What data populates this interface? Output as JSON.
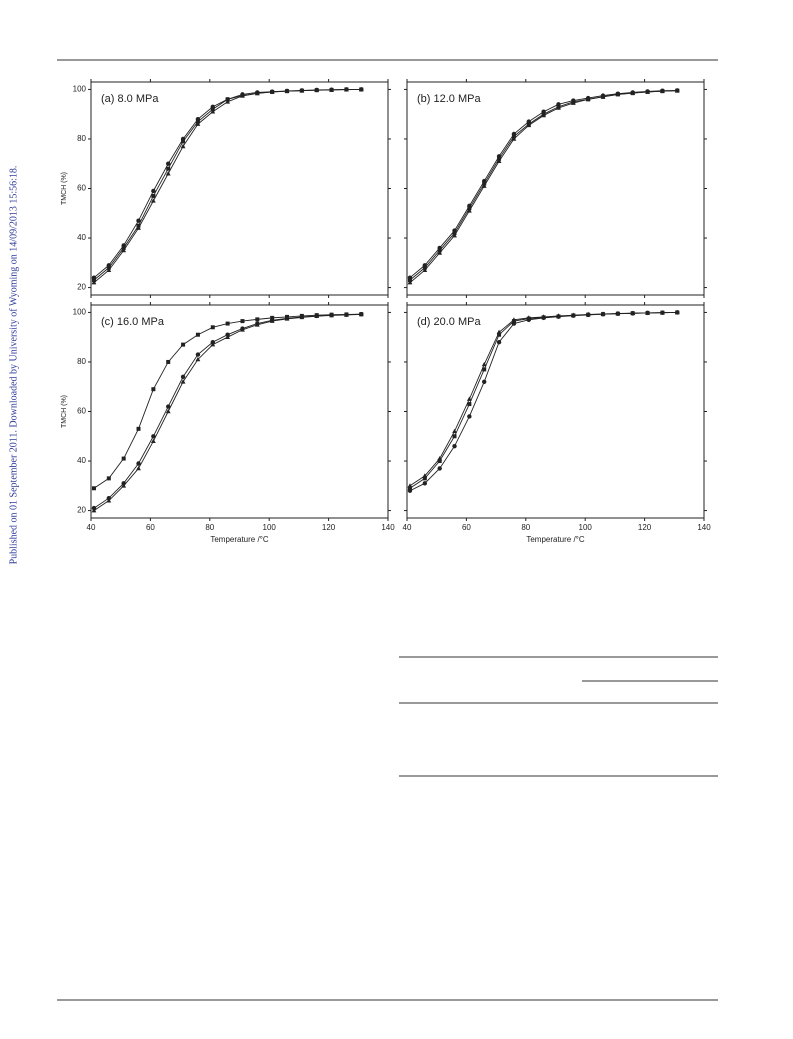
{
  "side_note": "Published on 01 September 2011. Downloaded by University of Wyoming on 14/09/2013 15:56:18.",
  "chart_data": [
    {
      "type": "line",
      "annotation": "(a) 8.0 MPa",
      "ylabel": "TMCH (%)",
      "x": [
        41,
        46,
        51,
        56,
        61,
        66,
        71,
        76,
        81,
        86,
        91,
        96,
        101,
        106,
        111,
        116,
        121,
        126,
        131
      ],
      "xlim": [
        40,
        140
      ],
      "ylim": [
        17,
        103
      ],
      "xticks": [
        40,
        60,
        80,
        100,
        120,
        140
      ],
      "yticks": [
        20,
        40,
        60,
        80,
        100
      ],
      "show_xticklabels": false,
      "show_yticklabels": true,
      "series": [
        {
          "color": "#222222",
          "marker": "square",
          "values": [
            23,
            28,
            36,
            45,
            57,
            68,
            79,
            87,
            92,
            96,
            97.5,
            98.5,
            99,
            99.3,
            99.5,
            99.7,
            99.8,
            100,
            100
          ]
        },
        {
          "color": "#222222",
          "marker": "circle",
          "values": [
            24,
            29,
            37,
            47,
            59,
            70,
            80,
            88,
            93,
            96,
            98,
            98.8,
            99.1,
            99.4,
            99.6,
            99.8,
            99.9,
            100,
            100
          ]
        },
        {
          "color": "#222222",
          "marker": "triangle",
          "values": [
            22,
            27,
            35,
            44,
            55,
            66,
            77,
            86,
            91,
            95,
            97.4,
            98.4,
            99,
            99.3,
            99.5,
            99.7,
            99.8,
            99.9,
            100
          ]
        }
      ]
    },
    {
      "type": "line",
      "annotation": "(b) 12.0 MPa",
      "x": [
        41,
        46,
        51,
        56,
        61,
        66,
        71,
        76,
        81,
        86,
        91,
        96,
        101,
        106,
        111,
        116,
        121,
        126,
        131
      ],
      "xlim": [
        40,
        140
      ],
      "ylim": [
        17,
        103
      ],
      "xticks": [
        40,
        60,
        80,
        100,
        120,
        140
      ],
      "yticks": [
        20,
        40,
        60,
        80,
        100
      ],
      "show_xticklabels": false,
      "show_yticklabels": false,
      "series": [
        {
          "color": "#222222",
          "marker": "square",
          "values": [
            23,
            28,
            35,
            42,
            52,
            62,
            72,
            81,
            86,
            90,
            93,
            95,
            96,
            97,
            98,
            98.5,
            99,
            99.3,
            99.5
          ]
        },
        {
          "color": "#222222",
          "marker": "circle",
          "values": [
            24,
            29,
            36,
            43,
            53,
            63,
            73,
            82,
            87,
            91,
            94,
            95.5,
            96.5,
            97.5,
            98.3,
            98.8,
            99.2,
            99.5,
            99.6
          ]
        },
        {
          "color": "#222222",
          "marker": "triangle",
          "values": [
            22,
            27,
            34,
            41,
            51,
            61,
            71,
            80,
            85.5,
            89.5,
            92.5,
            94.5,
            96,
            97,
            98,
            98.6,
            99,
            99.3,
            99.5
          ]
        }
      ]
    },
    {
      "type": "line",
      "annotation": "(c) 16.0 MPa",
      "ylabel": "TMCH (%)",
      "xlabel": "Temperature /°C",
      "x": [
        41,
        46,
        51,
        56,
        61,
        66,
        71,
        76,
        81,
        86,
        91,
        96,
        101,
        106,
        111,
        116,
        121,
        126,
        131
      ],
      "xlim": [
        40,
        140
      ],
      "ylim": [
        17,
        103
      ],
      "xticks": [
        40,
        60,
        80,
        100,
        120,
        140
      ],
      "yticks": [
        20,
        40,
        60,
        80,
        100
      ],
      "show_xticklabels": true,
      "show_yticklabels": true,
      "series": [
        {
          "color": "#222222",
          "marker": "square",
          "values": [
            29,
            33,
            41,
            53,
            69,
            80,
            87,
            91,
            94,
            95.5,
            96.5,
            97.2,
            97.8,
            98.2,
            98.6,
            98.9,
            99.1,
            99.2,
            99.3
          ]
        },
        {
          "color": "#222222",
          "marker": "circle",
          "values": [
            21,
            25,
            31,
            39,
            50,
            62,
            74,
            83,
            88,
            91,
            93.5,
            95.5,
            96.8,
            97.6,
            98.2,
            98.6,
            98.9,
            99.1,
            99.3
          ]
        },
        {
          "color": "#222222",
          "marker": "triangle",
          "values": [
            20,
            24,
            30,
            37,
            48,
            60,
            72,
            81,
            87,
            90,
            93,
            95,
            96.5,
            97.4,
            98,
            98.5,
            98.8,
            99,
            99.2
          ]
        }
      ]
    },
    {
      "type": "line",
      "annotation": "(d) 20.0 MPa",
      "xlabel": "Temperature /°C",
      "x": [
        41,
        46,
        51,
        56,
        61,
        66,
        71,
        76,
        81,
        86,
        91,
        96,
        101,
        106,
        111,
        116,
        121,
        126,
        131
      ],
      "xlim": [
        40,
        140
      ],
      "ylim": [
        17,
        103
      ],
      "xticks": [
        40,
        60,
        80,
        100,
        120,
        140
      ],
      "yticks": [
        20,
        40,
        60,
        80,
        100
      ],
      "show_xticklabels": true,
      "show_yticklabels": false,
      "series": [
        {
          "color": "#222222",
          "marker": "square",
          "values": [
            29,
            33,
            40,
            50,
            63,
            77,
            91,
            96.5,
            97.5,
            98,
            98.4,
            98.8,
            99.1,
            99.3,
            99.5,
            99.7,
            99.8,
            99.9,
            100
          ]
        },
        {
          "color": "#222222",
          "marker": "circle",
          "values": [
            28,
            31,
            37,
            46,
            58,
            72,
            88,
            95.5,
            97,
            97.8,
            98.3,
            98.7,
            99,
            99.3,
            99.5,
            99.6,
            99.8,
            99.9,
            100
          ]
        },
        {
          "color": "#222222",
          "marker": "triangle",
          "values": [
            30,
            34,
            41,
            52,
            65,
            79,
            92,
            97,
            97.8,
            98.2,
            98.6,
            98.9,
            99.2,
            99.4,
            99.6,
            99.7,
            99.8,
            99.9,
            100
          ]
        }
      ]
    }
  ]
}
